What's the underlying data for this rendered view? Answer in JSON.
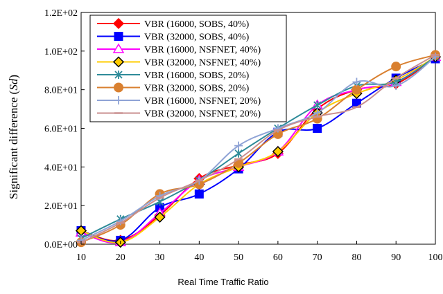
{
  "chart_data": {
    "type": "line",
    "xlabel": "Real Time Traffic Ratio",
    "ylabel_main": "Significant difference (",
    "ylabel_italic": "Sd",
    "ylabel_end": ")",
    "categories": [
      "10",
      "20",
      "30",
      "40",
      "50",
      "60",
      "70",
      "80",
      "90",
      "100"
    ],
    "x": [
      10,
      20,
      30,
      40,
      50,
      60,
      70,
      80,
      90,
      100
    ],
    "ylim": [
      0,
      120
    ],
    "xlim": [
      10,
      100
    ],
    "y_ticks": [
      {
        "value": 0,
        "label": "0.0E+00"
      },
      {
        "value": 20,
        "label": "2.0E+01"
      },
      {
        "value": 40,
        "label": "4.0E+01"
      },
      {
        "value": 60,
        "label": "6.0E+01"
      },
      {
        "value": 80,
        "label": "8.0E+01"
      },
      {
        "value": 100,
        "label": "1.0E+02"
      },
      {
        "value": 120,
        "label": "1.2E+02"
      }
    ],
    "grid": false,
    "legend_position": "top-left",
    "series": [
      {
        "name": "VBR (16000, SOBS, 40%)",
        "color": "#ff0000",
        "marker": "diamond",
        "marker_fill": "#ff0000",
        "marker_stroke": "#ff0000",
        "values": [
          7,
          2,
          15,
          34,
          41,
          47,
          70,
          80,
          83,
          97
        ]
      },
      {
        "name": "VBR (32000, SOBS, 40%)",
        "color": "#0000ff",
        "marker": "square",
        "marker_fill": "#0000ff",
        "marker_stroke": "#0000ff",
        "values": [
          7,
          2,
          19,
          26,
          39,
          58,
          60,
          73,
          86,
          96
        ]
      },
      {
        "name": "VBR (16000, NSFNET, 40%)",
        "color": "#ff00ff",
        "marker": "triangle",
        "marker_fill": "#ffffff",
        "marker_stroke": "#ff00ff",
        "values": [
          6,
          1,
          16,
          33,
          40,
          48,
          72,
          80,
          84,
          97
        ]
      },
      {
        "name": "VBR (32000, NSFNET, 40%)",
        "color": "#ffcc00",
        "marker": "diamond",
        "marker_fill": "#ffcc00",
        "marker_stroke": "#000000",
        "values": [
          7,
          1,
          14,
          31,
          40,
          48,
          68,
          78,
          85,
          97
        ]
      },
      {
        "name": "VBR (16000, SOBS, 20%)",
        "color": "#2e8b99",
        "marker": "x",
        "marker_fill": "none",
        "marker_stroke": "#2e8b99",
        "values": [
          3,
          13,
          22,
          33,
          47,
          60,
          72,
          82,
          84,
          97
        ]
      },
      {
        "name": "VBR (32000, SOBS, 20%)",
        "color": "#d98030",
        "marker": "circle",
        "marker_fill": "#d98030",
        "marker_stroke": "#d98030",
        "values": [
          1,
          10,
          26,
          31,
          42,
          57,
          65,
          80,
          92,
          98
        ]
      },
      {
        "name": "VBR (16000, NSFNET, 20%)",
        "color": "#8fa3d6",
        "marker": "plus",
        "marker_fill": "none",
        "marker_stroke": "#8fa3d6",
        "values": [
          2,
          12,
          25,
          33,
          51,
          60,
          68,
          84,
          82,
          97
        ]
      },
      {
        "name": "VBR (32000, NSFNET, 20%)",
        "color": "#c98f8f",
        "marker": "dash",
        "marker_fill": "none",
        "marker_stroke": "#c98f8f",
        "values": [
          1,
          11,
          24,
          33,
          44,
          59,
          66,
          71,
          86,
          98
        ]
      }
    ]
  }
}
